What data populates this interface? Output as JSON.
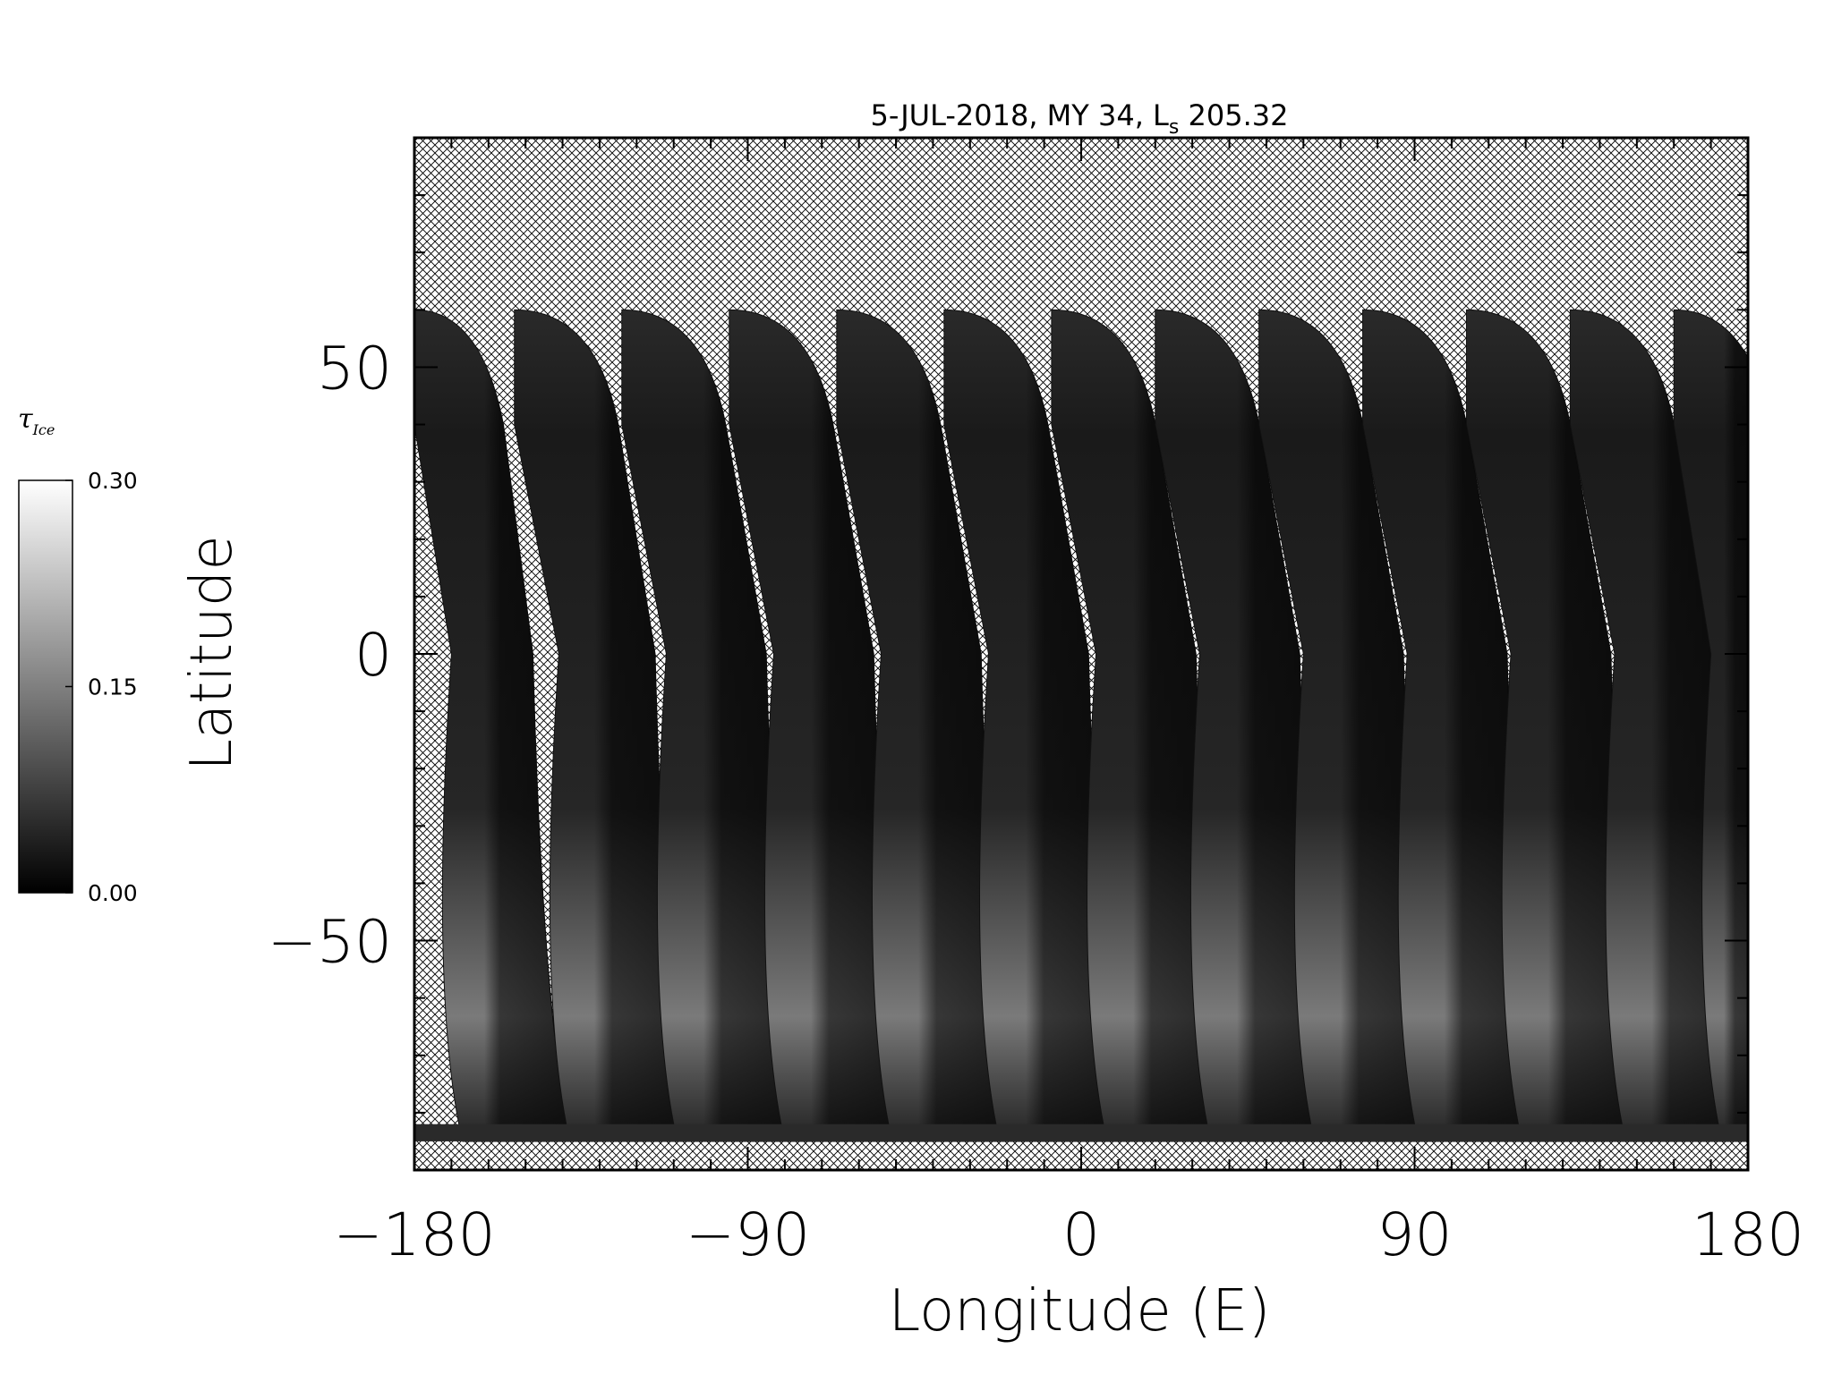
{
  "chart_data": {
    "type": "heatmap",
    "title": {
      "main": "5-JUL-2018, MY 34,  L",
      "sub": "s",
      "tail": " 205.32"
    },
    "xlabel": "Longitude (E)",
    "ylabel": "Latitude",
    "xlim": [
      -180,
      180
    ],
    "ylim": [
      -90,
      90
    ],
    "x_ticks": [
      -180,
      -90,
      0,
      90,
      180
    ],
    "x_tick_labels": [
      "−180",
      "−90",
      "0",
      "90",
      "180"
    ],
    "y_ticks": [
      -50,
      0,
      50
    ],
    "y_tick_labels": [
      "−50",
      "0",
      "50"
    ],
    "colorbar": {
      "label": "τ",
      "label_sub": "Ice",
      "range": [
        0.0,
        0.3
      ],
      "ticks": [
        0.0,
        0.15,
        0.3
      ],
      "tick_labels": [
        "0.00",
        "0.15",
        "0.30"
      ],
      "colormap": "grayscale"
    },
    "no_data_fill": "crosshatch",
    "swath_lat_top": 60,
    "swath_lat_bottom": -85,
    "swaths": [
      {
        "x_top": -180,
        "width_top": 18,
        "x_mid": -170,
        "width_mid": 22
      },
      {
        "x_top": -153,
        "width_top": 22,
        "x_mid": -141,
        "width_mid": 26
      },
      {
        "x_top": -124,
        "width_top": 22,
        "x_mid": -112,
        "width_mid": 27
      },
      {
        "x_top": -95,
        "width_top": 22,
        "x_mid": -83,
        "width_mid": 27
      },
      {
        "x_top": -66,
        "width_top": 22,
        "x_mid": -54,
        "width_mid": 27
      },
      {
        "x_top": -37,
        "width_top": 22,
        "x_mid": -25,
        "width_mid": 27
      },
      {
        "x_top": -8,
        "width_top": 22,
        "x_mid": 4,
        "width_mid": 27
      },
      {
        "x_top": 20,
        "width_top": 22,
        "x_mid": 32,
        "width_mid": 27
      },
      {
        "x_top": 48,
        "width_top": 22,
        "x_mid": 60,
        "width_mid": 27
      },
      {
        "x_top": 76,
        "width_top": 22,
        "x_mid": 88,
        "width_mid": 27
      },
      {
        "x_top": 104,
        "width_top": 22,
        "x_mid": 116,
        "width_mid": 27
      },
      {
        "x_top": 132,
        "width_top": 22,
        "x_mid": 144,
        "width_mid": 27
      },
      {
        "x_top": 160,
        "width_top": 20,
        "x_mid": 170,
        "width_mid": 10
      }
    ]
  }
}
